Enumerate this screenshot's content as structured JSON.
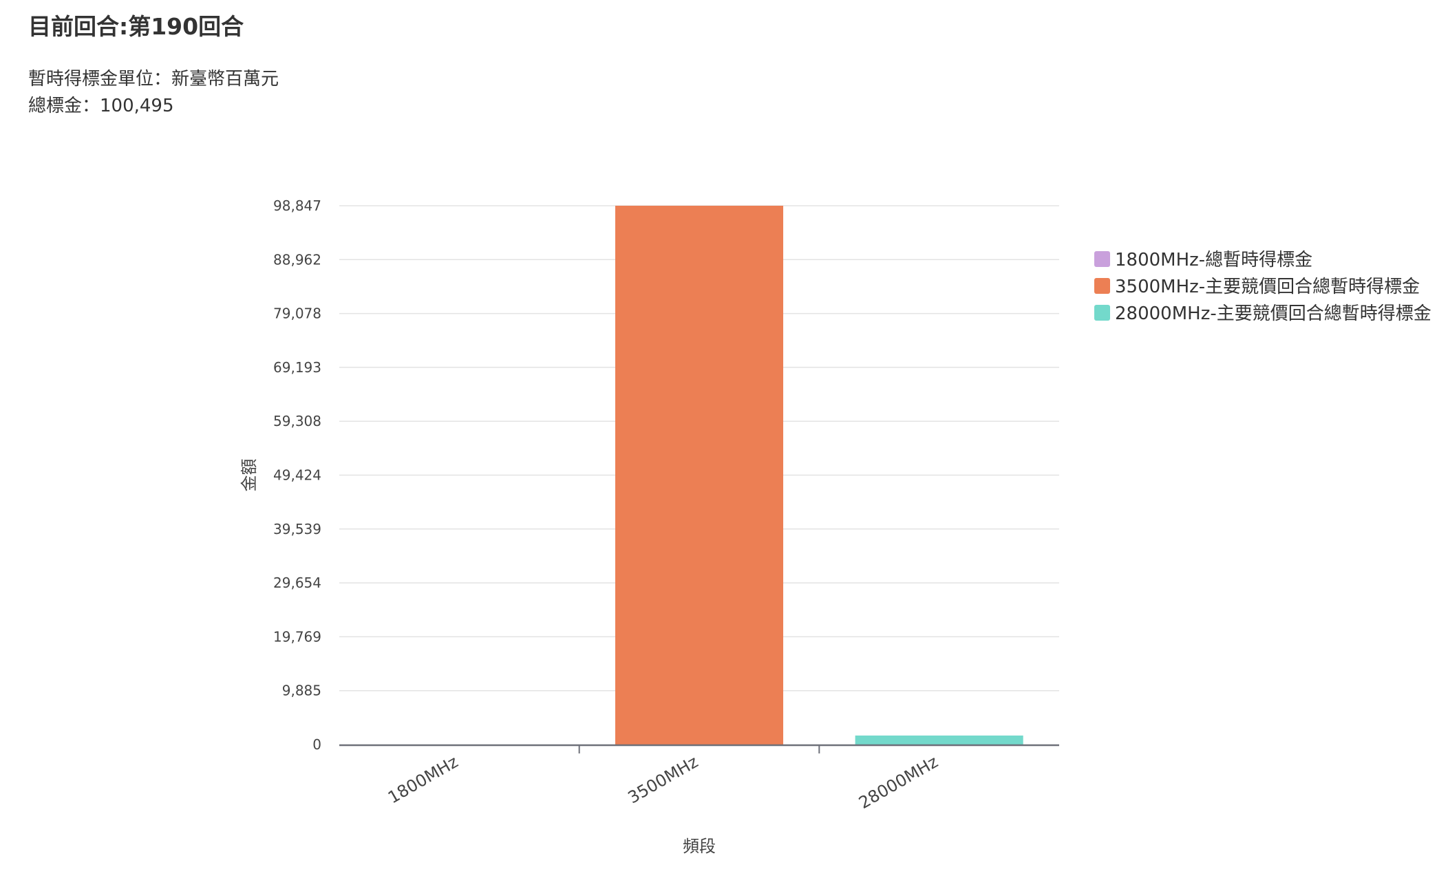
{
  "header": {
    "round_text": "目前回合:第190回合",
    "unit_text": "暫時得標金單位：新臺幣百萬元",
    "total_text": "總標金：100,495"
  },
  "chart_data": {
    "type": "bar",
    "categories": [
      "1800MHz",
      "3500MHz",
      "28000MHz"
    ],
    "series": [
      {
        "name": "1800MHz-總暫時得標金",
        "color": "#c9a0dc",
        "values": [
          0,
          null,
          null
        ]
      },
      {
        "name": "3500MHz-主要競價回合總暫時得標金",
        "color": "#ec7f54",
        "values": [
          null,
          98847,
          null
        ]
      },
      {
        "name": "28000MHz-主要競價回合總暫時得標金",
        "color": "#73d9cb",
        "values": [
          null,
          null,
          1648
        ]
      }
    ],
    "xlabel": "頻段",
    "ylabel": "金額",
    "ylim": [
      0,
      98847
    ],
    "yticks": [
      "0",
      "9,885",
      "19,769",
      "29,654",
      "39,539",
      "49,424",
      "59,308",
      "69,193",
      "79,078",
      "88,962",
      "98,847"
    ],
    "grid": true,
    "legend_position": "right"
  }
}
